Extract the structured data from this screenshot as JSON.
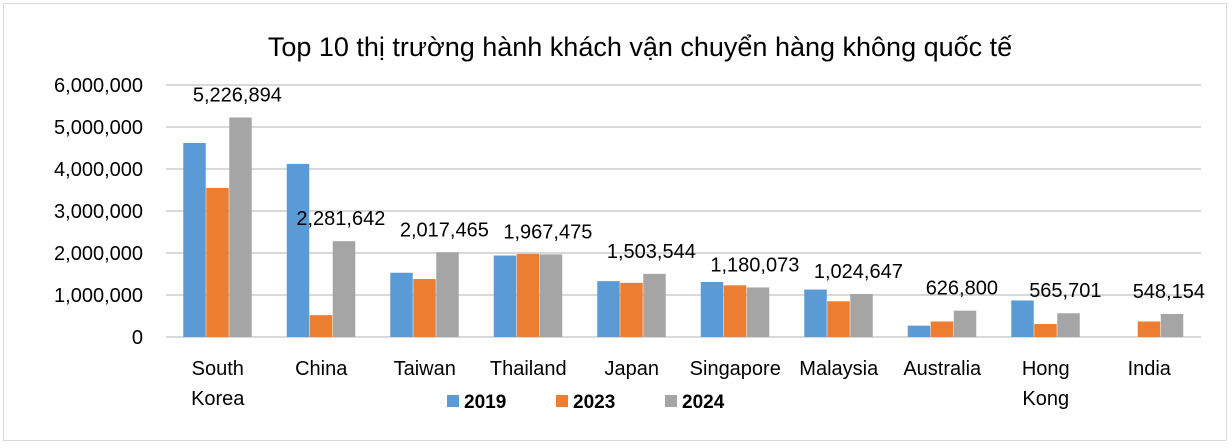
{
  "chart_data": {
    "type": "bar",
    "title": "Top 10 thị trường hành khách vận chuyển hàng không quốc tế",
    "xlabel": "",
    "ylabel": "",
    "ylim": [
      0,
      6000000
    ],
    "yticks": [
      "0",
      "1,000,000",
      "2,000,000",
      "3,000,000",
      "4,000,000",
      "5,000,000",
      "6,000,000"
    ],
    "grid": true,
    "legend_position": "bottom",
    "categories": [
      [
        "South",
        "Korea"
      ],
      [
        "China"
      ],
      [
        "Taiwan"
      ],
      [
        "Thailand"
      ],
      [
        "Japan"
      ],
      [
        "Singapore"
      ],
      [
        "Malaysia"
      ],
      [
        "Australia"
      ],
      [
        "Hong",
        "Kong"
      ],
      [
        "India"
      ]
    ],
    "series": [
      {
        "name": "2019",
        "color": "#5b9bd5",
        "values": [
          4620000,
          4120000,
          1530000,
          1940000,
          1330000,
          1310000,
          1130000,
          270000,
          870000,
          0
        ]
      },
      {
        "name": "2023",
        "color": "#ed7d31",
        "values": [
          3550000,
          520000,
          1380000,
          1980000,
          1290000,
          1230000,
          850000,
          370000,
          310000,
          370000
        ]
      },
      {
        "name": "2024",
        "color": "#a5a5a5",
        "values": [
          5226894,
          2281642,
          2017465,
          1967475,
          1503544,
          1180073,
          1024647,
          626800,
          565701,
          548154
        ]
      }
    ],
    "data_labels_2024": [
      "5,226,894",
      "2,281,642",
      "2,017,465",
      "1,967,475",
      "1,503,544",
      "1,180,073",
      "1,024,647",
      "626,800",
      "565,701",
      "548,154"
    ]
  }
}
